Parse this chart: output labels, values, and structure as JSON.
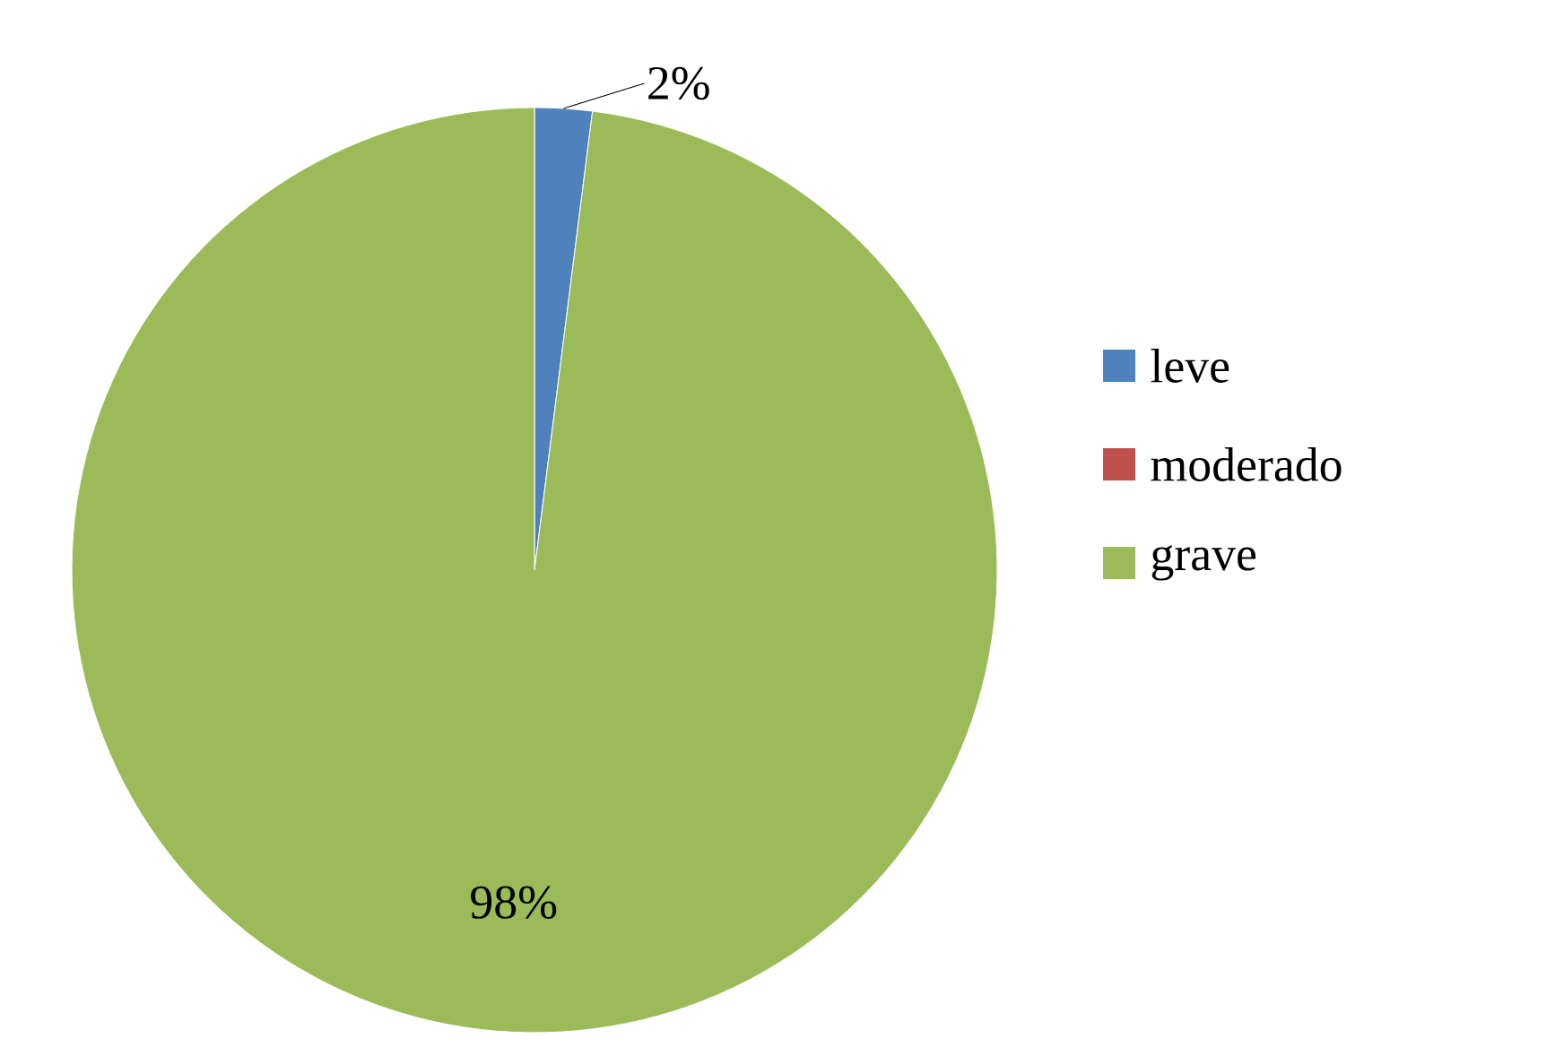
{
  "chart_data": {
    "type": "pie",
    "categories": [
      "leve",
      "moderado",
      "grave"
    ],
    "values": [
      2,
      0,
      98
    ],
    "colors": [
      "#4f81bd",
      "#c0504d",
      "#9bbb59"
    ],
    "value_labels": [
      "2%",
      null,
      "98%"
    ],
    "legend": "right"
  }
}
